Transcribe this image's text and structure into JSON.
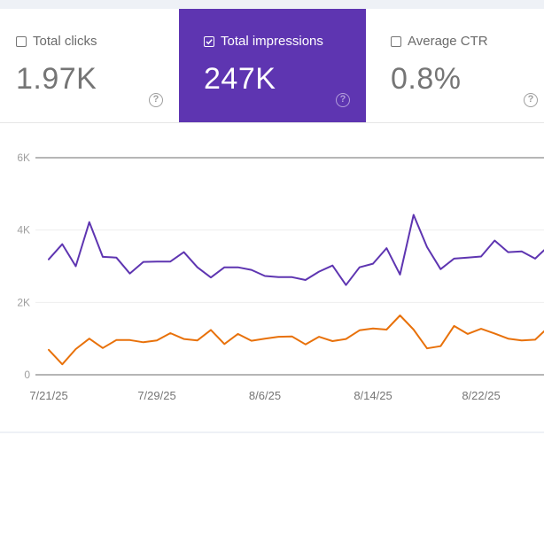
{
  "metrics": [
    {
      "label": "Total clicks",
      "value": "1.97K",
      "checked": false,
      "help_icon": "help-circle-icon"
    },
    {
      "label": "Total impressions",
      "value": "247K",
      "checked": true,
      "help_icon": "help-circle-icon"
    },
    {
      "label": "Average CTR",
      "value": "0.8%",
      "checked": false,
      "help_icon": "help-circle-icon"
    }
  ],
  "colors": {
    "impressions": "#5e35b1",
    "clicks": "#e8710a",
    "selected_card_bg": "#5e35b1"
  },
  "chart_data": {
    "type": "line",
    "title": "",
    "xlabel": "",
    "ylabel": "",
    "ylim": [
      0,
      6000
    ],
    "y_ticks": [
      "0",
      "2K",
      "4K",
      "6K"
    ],
    "y_tick_values": [
      0,
      2000,
      4000,
      6000
    ],
    "x_tick_labels": [
      "7/21/25",
      "7/29/25",
      "8/6/25",
      "8/14/25",
      "8/22/25"
    ],
    "x_tick_indices": [
      0,
      8,
      16,
      24,
      32
    ],
    "grid": true,
    "legend": "none",
    "series": [
      {
        "name": "Impressions",
        "color": "#5e35b1",
        "values": [
          3190,
          3610,
          3000,
          4220,
          3260,
          3240,
          2800,
          3120,
          3130,
          3130,
          3390,
          2970,
          2690,
          2970,
          2970,
          2900,
          2730,
          2700,
          2700,
          2620,
          2850,
          3020,
          2480,
          2970,
          3070,
          3500,
          2770,
          4420,
          3530,
          2920,
          3210,
          3240,
          3270,
          3710,
          3390,
          3410,
          3210,
          3560
        ]
      },
      {
        "name": "Clicks",
        "color": "#e8710a",
        "values": [
          690,
          290,
          710,
          1000,
          740,
          960,
          960,
          900,
          950,
          1150,
          990,
          950,
          1240,
          850,
          1130,
          940,
          1000,
          1050,
          1060,
          840,
          1050,
          930,
          990,
          1230,
          1280,
          1250,
          1640,
          1250,
          730,
          790,
          1350,
          1130,
          1270,
          1140,
          1000,
          950,
          970,
          1320
        ]
      }
    ]
  }
}
